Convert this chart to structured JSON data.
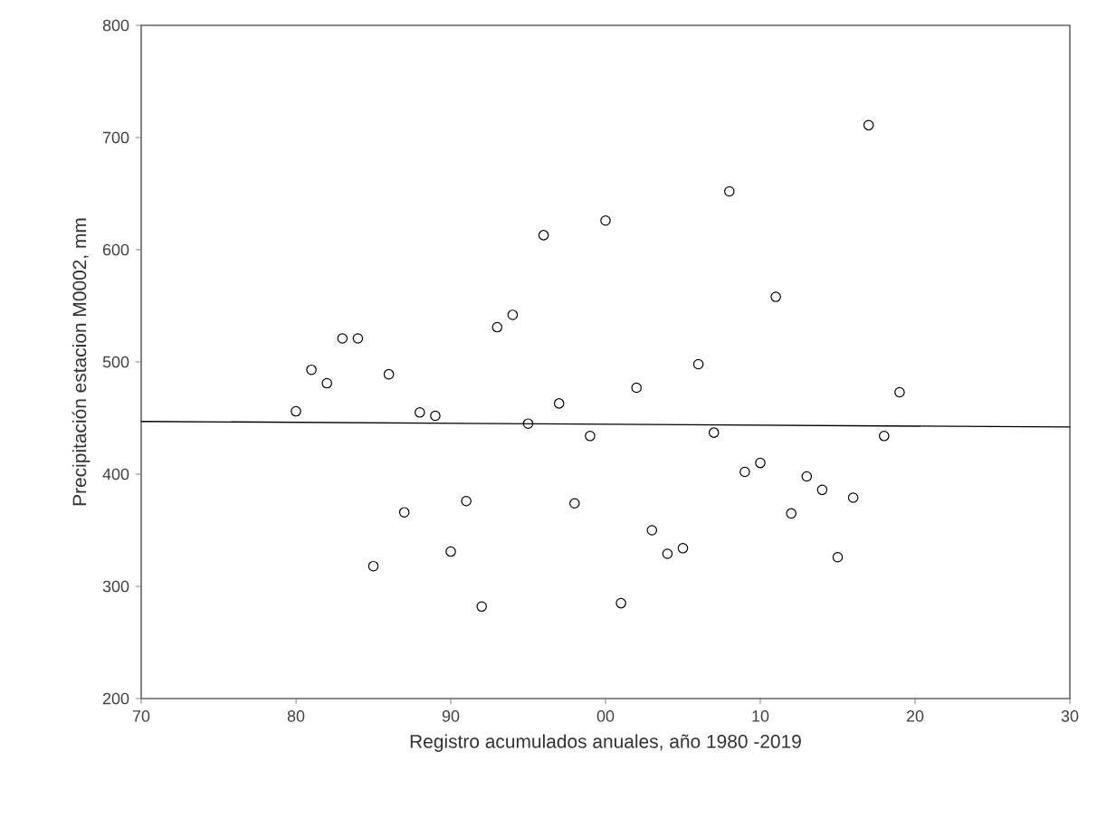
{
  "chart_data": {
    "type": "scatter",
    "xlabel": "Registro acumulados anuales, año 1980 -2019",
    "ylabel": "Precipitación estacion M0002, mm",
    "xlim": [
      1970,
      2030
    ],
    "xticks": [
      {
        "value": 1970,
        "label": "70"
      },
      {
        "value": 1980,
        "label": "80"
      },
      {
        "value": 1990,
        "label": "90"
      },
      {
        "value": 2000,
        "label": "00"
      },
      {
        "value": 2010,
        "label": "10"
      },
      {
        "value": 2020,
        "label": "20"
      },
      {
        "value": 2030,
        "label": "30"
      }
    ],
    "ylim": [
      200,
      800
    ],
    "yticks": [
      200,
      300,
      400,
      500,
      600,
      700,
      800
    ],
    "grid": false,
    "series": [
      {
        "color": "#000000",
        "marker": "circle",
        "x": [
          1980,
          1981,
          1982,
          1983,
          1984,
          1985,
          1986,
          1987,
          1988,
          1989,
          1990,
          1991,
          1992,
          1993,
          1994,
          1995,
          1996,
          1997,
          1998,
          1999,
          2000,
          2001,
          2002,
          2003,
          2004,
          2005,
          2006,
          2007,
          2008,
          2009,
          2010,
          2011,
          2012,
          2013,
          2014,
          2015,
          2016,
          2017,
          2018,
          2019
        ],
        "values": [
          456,
          493,
          481,
          521,
          521,
          318,
          489,
          366,
          455,
          452,
          331,
          376,
          282,
          531,
          542,
          445,
          613,
          463,
          374,
          434,
          626,
          285,
          477,
          350,
          329,
          334,
          498,
          437,
          652,
          402,
          410,
          558,
          365,
          398,
          386,
          326,
          379,
          711,
          434,
          473
        ]
      },
      {
        "type": "line",
        "color": "#000000",
        "line_style": "solid",
        "x": [
          1970,
          2030
        ],
        "values": [
          447,
          442
        ]
      }
    ]
  }
}
